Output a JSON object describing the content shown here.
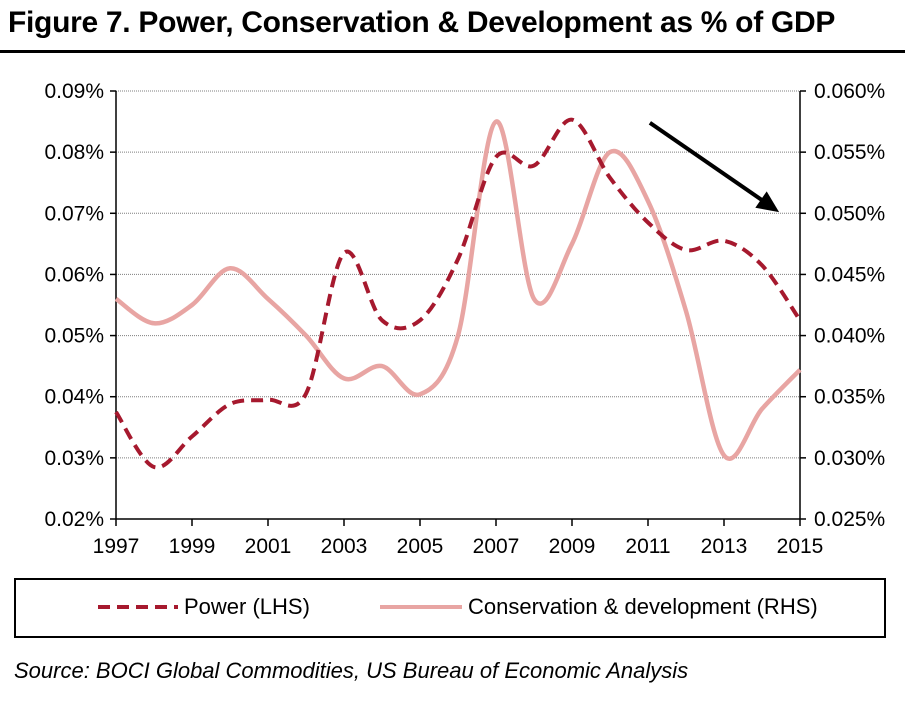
{
  "title": "Figure 7. Power, Conservation & Development as % of GDP",
  "source": "Source: BOCI Global Commodities, US Bureau of Economic Analysis",
  "colors": {
    "power": "#a6192e",
    "conservation": "#e8a5a3",
    "grid": "#7f7f7f",
    "arrow": "#000000"
  },
  "legend": {
    "power": "Power (LHS)",
    "conservation": "Conservation & development (RHS)"
  },
  "chart_data": {
    "type": "line",
    "x_ticks": [
      "1997",
      "1999",
      "2001",
      "2003",
      "2005",
      "2007",
      "2009",
      "2011",
      "2013",
      "2015"
    ],
    "y_left_ticks": [
      "0.02%",
      "0.03%",
      "0.04%",
      "0.05%",
      "0.06%",
      "0.07%",
      "0.08%",
      "0.09%"
    ],
    "y_right_ticks": [
      "0.025%",
      "0.030%",
      "0.035%",
      "0.040%",
      "0.045%",
      "0.050%",
      "0.055%",
      "0.060%"
    ],
    "ylim_left": [
      0.02,
      0.09
    ],
    "ylim_right": [
      0.025,
      0.06
    ],
    "xlim": [
      1997,
      2015
    ],
    "grid": true,
    "legend_position": "bottom",
    "annotations": [
      {
        "type": "arrow",
        "direction": "down-right",
        "near": "2011-2014"
      }
    ],
    "series": [
      {
        "name": "Power (LHS)",
        "axis": "left",
        "style": "dashed",
        "x": [
          1997,
          1998,
          1999,
          2000,
          2001,
          2002,
          2003,
          2004,
          2005,
          2006,
          2007,
          2008,
          2009,
          2010,
          2011,
          2012,
          2013,
          2014,
          2015
        ],
        "values": [
          0.0375,
          0.0285,
          0.0335,
          0.0388,
          0.0395,
          0.0405,
          0.0635,
          0.0525,
          0.0525,
          0.0625,
          0.0792,
          0.0778,
          0.0853,
          0.0758,
          0.0685,
          0.064,
          0.0655,
          0.0615,
          0.0525
        ]
      },
      {
        "name": "Conservation & development (RHS)",
        "axis": "right",
        "style": "solid",
        "x": [
          1997,
          1998,
          1999,
          2000,
          2001,
          2002,
          2003,
          2004,
          2005,
          2006,
          2007,
          2008,
          2009,
          2010,
          2011,
          2012,
          2013,
          2014,
          2015
        ],
        "values": [
          0.043,
          0.041,
          0.0425,
          0.0455,
          0.043,
          0.04,
          0.0365,
          0.0375,
          0.0352,
          0.04,
          0.0575,
          0.043,
          0.0475,
          0.055,
          0.051,
          0.042,
          0.0302,
          0.034,
          0.0372
        ]
      }
    ]
  }
}
